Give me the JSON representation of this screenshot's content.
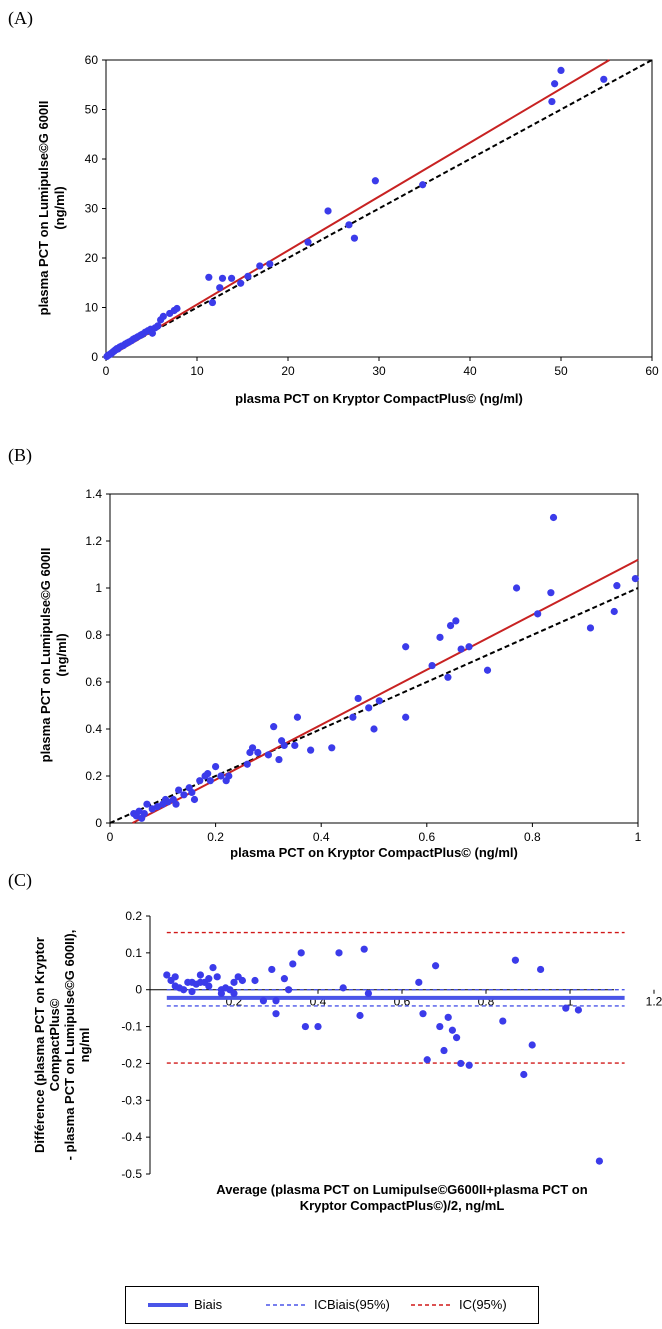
{
  "colors": {
    "points": "#3b3bea",
    "fit": "#c82222",
    "identity": "#000000",
    "bias": "#4a55e8",
    "ci": "#d01818"
  },
  "panels": {
    "A": {
      "label": "(A)"
    },
    "B": {
      "label": "(B)"
    },
    "C": {
      "label": "(C)"
    }
  },
  "chart_data": [
    {
      "type": "scatter",
      "panel": "A",
      "xlabel": "plasma PCT on Kryptor CompactPlus© (ng/ml)",
      "ylabel": [
        "plasma PCT on Lumipulse©G 600II",
        "(ng/ml)"
      ],
      "xlim": [
        0,
        60
      ],
      "ylim": [
        0,
        60
      ],
      "xticks": [
        0,
        10,
        20,
        30,
        40,
        50,
        60
      ],
      "yticks": [
        0,
        10,
        20,
        30,
        40,
        50,
        60
      ],
      "fit_line": {
        "slope": 1.09,
        "intercept": -0.3
      },
      "identity_line": true,
      "x": [
        0.1,
        0.2,
        0.3,
        0.4,
        0.5,
        0.6,
        0.7,
        0.8,
        0.9,
        1.0,
        1.1,
        1.2,
        1.3,
        1.5,
        1.7,
        1.9,
        2.1,
        2.3,
        2.5,
        2.8,
        3.0,
        3.2,
        3.5,
        3.8,
        4.0,
        4.3,
        4.6,
        4.9,
        5.1,
        5.4,
        5.7,
        6.0,
        6.3,
        7.0,
        7.5,
        7.8,
        11.3,
        11.7,
        12.5,
        12.8,
        13.8,
        14.8,
        15.6,
        16.9,
        18.0,
        22.2,
        24.4,
        26.7,
        27.3,
        29.6,
        34.8,
        49.0,
        49.3,
        50.0,
        54.7
      ],
      "y": [
        0.1,
        0.3,
        0.4,
        0.5,
        0.6,
        0.8,
        0.9,
        1.1,
        1.2,
        1.4,
        1.5,
        1.7,
        1.6,
        2.0,
        2.2,
        2.3,
        2.6,
        2.8,
        3.0,
        3.3,
        3.6,
        3.8,
        4.1,
        4.4,
        4.6,
        5.0,
        5.3,
        5.6,
        4.8,
        5.9,
        6.3,
        7.5,
        8.2,
        8.8,
        9.4,
        9.8,
        16.1,
        11.0,
        14.0,
        15.9,
        15.9,
        14.9,
        16.3,
        18.4,
        18.8,
        23.2,
        29.5,
        26.7,
        24.0,
        35.6,
        34.8,
        51.6,
        55.2,
        57.9,
        56.1
      ]
    },
    {
      "type": "scatter",
      "panel": "B",
      "xlabel": "plasma PCT on Kryptor CompactPlus© (ng/ml)",
      "ylabel": [
        "plasma PCT on Lumipulse©G 600II",
        "(ng/ml)"
      ],
      "xlim": [
        0,
        1
      ],
      "ylim": [
        0,
        1.4
      ],
      "xticks": [
        0,
        0.2,
        0.4,
        0.6,
        0.8,
        1
      ],
      "yticks": [
        0,
        0.2,
        0.4,
        0.6,
        0.8,
        1,
        1.2,
        1.4
      ],
      "fit_line": {
        "slope": 1.17,
        "intercept": -0.05
      },
      "identity_line": true,
      "x": [
        0.045,
        0.05,
        0.055,
        0.06,
        0.065,
        0.07,
        0.08,
        0.09,
        0.1,
        0.105,
        0.11,
        0.12,
        0.125,
        0.13,
        0.14,
        0.15,
        0.155,
        0.16,
        0.17,
        0.18,
        0.185,
        0.19,
        0.2,
        0.21,
        0.22,
        0.225,
        0.26,
        0.265,
        0.27,
        0.28,
        0.3,
        0.31,
        0.32,
        0.325,
        0.33,
        0.35,
        0.355,
        0.38,
        0.42,
        0.46,
        0.47,
        0.49,
        0.5,
        0.51,
        0.56,
        0.56,
        0.61,
        0.625,
        0.64,
        0.645,
        0.655,
        0.665,
        0.68,
        0.715,
        0.77,
        0.81,
        0.835,
        0.84,
        0.91,
        0.955,
        0.96,
        0.995
      ],
      "y": [
        0.04,
        0.03,
        0.05,
        0.02,
        0.04,
        0.08,
        0.06,
        0.07,
        0.08,
        0.1,
        0.09,
        0.1,
        0.08,
        0.14,
        0.12,
        0.15,
        0.13,
        0.1,
        0.18,
        0.2,
        0.21,
        0.18,
        0.24,
        0.2,
        0.18,
        0.2,
        0.25,
        0.3,
        0.32,
        0.3,
        0.29,
        0.41,
        0.27,
        0.35,
        0.33,
        0.33,
        0.45,
        0.31,
        0.32,
        0.45,
        0.53,
        0.49,
        0.4,
        0.52,
        0.45,
        0.75,
        0.67,
        0.79,
        0.62,
        0.84,
        0.86,
        0.74,
        0.75,
        0.65,
        1.0,
        0.89,
        0.98,
        1.3,
        0.83,
        0.9,
        1.01,
        1.04
      ]
    },
    {
      "type": "scatter",
      "panel": "C",
      "xlabel": [
        "Average (plasma PCT on Lumipulse©G600II+plasma PCT on",
        "Kryptor CompactPlus©)/2, ng/mL"
      ],
      "ylabel": [
        "Différence (plasma PCT on Kryptor",
        "CompactPlus©",
        "- plasma PCT on Lumipulse©G 600II),",
        "ng/ml"
      ],
      "xlim": [
        0,
        1.2
      ],
      "ylim": [
        -0.5,
        0.2
      ],
      "xticks": [
        0,
        0.2,
        0.4,
        0.6,
        0.8,
        1,
        1.2
      ],
      "xtick_labels": [
        "0",
        "0.2",
        "0.4",
        "0.6",
        "0.8",
        "1",
        "1.2"
      ],
      "yticks": [
        0.2,
        0.1,
        0,
        -0.1,
        -0.2,
        -0.3,
        -0.4,
        -0.5
      ],
      "bias": -0.022,
      "ci_bias": [
        0.0,
        -0.044
      ],
      "ci95": [
        0.155,
        -0.199
      ],
      "x": [
        0.04,
        0.05,
        0.06,
        0.06,
        0.07,
        0.08,
        0.09,
        0.1,
        0.1,
        0.11,
        0.12,
        0.12,
        0.13,
        0.14,
        0.14,
        0.15,
        0.16,
        0.17,
        0.17,
        0.18,
        0.19,
        0.2,
        0.2,
        0.21,
        0.22,
        0.25,
        0.27,
        0.29,
        0.3,
        0.3,
        0.32,
        0.33,
        0.34,
        0.36,
        0.37,
        0.4,
        0.45,
        0.46,
        0.5,
        0.51,
        0.52,
        0.64,
        0.65,
        0.66,
        0.68,
        0.69,
        0.7,
        0.71,
        0.72,
        0.73,
        0.74,
        0.76,
        0.84,
        0.87,
        0.89,
        0.91,
        0.93,
        0.99,
        1.02,
        1.07
      ],
      "y": [
        0.04,
        0.025,
        0.035,
        0.01,
        0.005,
        0.0,
        0.02,
        0.02,
        -0.005,
        0.015,
        0.04,
        0.02,
        0.02,
        0.03,
        0.01,
        0.06,
        0.035,
        0.0,
        -0.01,
        0.005,
        0.0,
        -0.01,
        0.02,
        0.035,
        0.025,
        0.025,
        -0.03,
        0.055,
        -0.065,
        -0.03,
        0.03,
        0.0,
        0.07,
        0.1,
        -0.1,
        -0.1,
        0.1,
        0.005,
        -0.07,
        0.11,
        -0.01,
        0.02,
        -0.065,
        -0.19,
        0.065,
        -0.1,
        -0.165,
        -0.075,
        -0.11,
        -0.13,
        -0.2,
        -0.205,
        -0.085,
        0.08,
        -0.23,
        -0.15,
        0.055,
        -0.05,
        -0.055,
        -0.465
      ]
    }
  ],
  "legend": {
    "bias": "Biais",
    "ci_bias": "ICBiais(95%)",
    "ci95": "IC(95%)"
  }
}
